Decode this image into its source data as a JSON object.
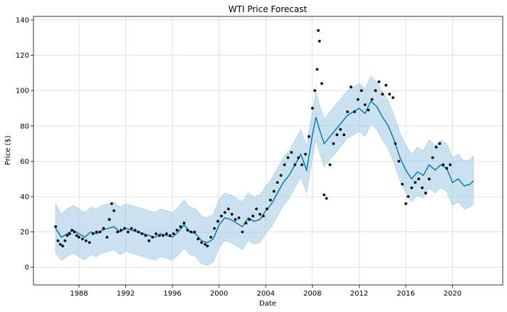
{
  "chart_data": {
    "type": "line",
    "title": "WTI Price Forecast",
    "xlabel": "Date",
    "ylabel": "Price ($)",
    "xlim": [
      1984.1,
      2024.3
    ],
    "ylim": [
      -10,
      142
    ],
    "x_ticks": [
      1988,
      1992,
      1996,
      2000,
      2004,
      2008,
      2012,
      2016,
      2020
    ],
    "y_ticks": [
      0,
      20,
      40,
      60,
      80,
      100,
      120,
      140
    ],
    "grid": true,
    "colors": {
      "forecast": "#0072B2",
      "band": "#9ECAE1",
      "observed": "#000000"
    },
    "forecast": {
      "x": [
        1986.0,
        1986.5,
        1987.0,
        1987.5,
        1988.0,
        1988.5,
        1989.0,
        1989.5,
        1990.0,
        1990.5,
        1991.0,
        1991.5,
        1992.0,
        1992.5,
        1993.0,
        1993.5,
        1994.0,
        1994.5,
        1995.0,
        1995.5,
        1996.0,
        1996.5,
        1997.0,
        1997.5,
        1998.0,
        1998.5,
        1999.0,
        1999.5,
        2000.0,
        2000.5,
        2001.0,
        2001.5,
        2002.0,
        2002.5,
        2003.0,
        2003.5,
        2004.0,
        2004.5,
        2005.0,
        2005.5,
        2006.0,
        2006.5,
        2007.0,
        2007.5,
        2008.0,
        2008.3,
        2008.6,
        2009.0,
        2009.5,
        2010.0,
        2010.5,
        2011.0,
        2011.5,
        2012.0,
        2012.5,
        2013.0,
        2013.5,
        2014.0,
        2014.5,
        2015.0,
        2015.5,
        2016.0,
        2016.5,
        2017.0,
        2017.5,
        2018.0,
        2018.5,
        2019.0,
        2019.5,
        2020.0,
        2020.5,
        2021.0,
        2021.5,
        2021.8
      ],
      "y": [
        22,
        17,
        19,
        21,
        19,
        17,
        20,
        19,
        21,
        22,
        23,
        20,
        22,
        21,
        20,
        19,
        18,
        17,
        19,
        18,
        17,
        20,
        24,
        20,
        19,
        15,
        14,
        16,
        24,
        28,
        27,
        25,
        23,
        28,
        26,
        27,
        32,
        36,
        42,
        48,
        52,
        58,
        64,
        55,
        75,
        85,
        78,
        70,
        74,
        78,
        82,
        86,
        88,
        90,
        87,
        94,
        91,
        85,
        80,
        72,
        62,
        55,
        50,
        54,
        52,
        58,
        55,
        58,
        56,
        48,
        50,
        46,
        47,
        49
      ],
      "lower": [
        8,
        4,
        6,
        8,
        6,
        4,
        7,
        6,
        8,
        9,
        10,
        7,
        9,
        8,
        7,
        6,
        5,
        4,
        6,
        5,
        4,
        7,
        11,
        7,
        6,
        2,
        1,
        3,
        11,
        15,
        14,
        12,
        10,
        15,
        13,
        14,
        19,
        23,
        29,
        35,
        39,
        45,
        51,
        42,
        62,
        72,
        65,
        57,
        61,
        65,
        69,
        73,
        75,
        77,
        74,
        81,
        78,
        72,
        67,
        59,
        49,
        42,
        37,
        41,
        39,
        45,
        42,
        45,
        43,
        35,
        37,
        33,
        34,
        36
      ],
      "upper": [
        36,
        30,
        33,
        35,
        33,
        31,
        34,
        33,
        35,
        36,
        37,
        34,
        36,
        35,
        34,
        33,
        32,
        31,
        33,
        32,
        31,
        34,
        38,
        34,
        33,
        29,
        28,
        30,
        38,
        42,
        41,
        39,
        37,
        42,
        40,
        41,
        46,
        50,
        56,
        62,
        66,
        72,
        78,
        69,
        89,
        99,
        92,
        84,
        88,
        92,
        96,
        100,
        102,
        104,
        101,
        108,
        105,
        99,
        94,
        86,
        76,
        69,
        64,
        68,
        66,
        72,
        69,
        72,
        70,
        62,
        64,
        60,
        61,
        63
      ]
    },
    "observed": {
      "x": [
        1986.0,
        1986.2,
        1986.4,
        1986.6,
        1986.8,
        1987.0,
        1987.2,
        1987.4,
        1987.6,
        1987.8,
        1988.0,
        1988.3,
        1988.6,
        1988.9,
        1989.2,
        1989.5,
        1989.8,
        1990.1,
        1990.4,
        1990.6,
        1990.8,
        1991.0,
        1991.3,
        1991.6,
        1991.9,
        1992.2,
        1992.5,
        1992.8,
        1993.1,
        1993.4,
        1993.7,
        1994.0,
        1994.3,
        1994.6,
        1994.9,
        1995.2,
        1995.5,
        1995.8,
        1996.1,
        1996.4,
        1996.7,
        1997.0,
        1997.3,
        1997.6,
        1997.9,
        1998.2,
        1998.5,
        1998.8,
        1999.0,
        1999.3,
        1999.6,
        1999.9,
        2000.2,
        2000.5,
        2000.8,
        2001.1,
        2001.4,
        2001.7,
        2002.0,
        2002.3,
        2002.6,
        2002.9,
        2003.2,
        2003.5,
        2003.8,
        2004.1,
        2004.4,
        2004.7,
        2005.0,
        2005.3,
        2005.6,
        2005.9,
        2006.2,
        2006.5,
        2006.8,
        2007.1,
        2007.4,
        2007.7,
        2008.0,
        2008.2,
        2008.4,
        2008.5,
        2008.6,
        2008.8,
        2009.0,
        2009.2,
        2009.5,
        2009.8,
        2010.1,
        2010.4,
        2010.7,
        2011.0,
        2011.3,
        2011.6,
        2011.9,
        2012.2,
        2012.5,
        2012.8,
        2013.1,
        2013.4,
        2013.7,
        2014.0,
        2014.3,
        2014.6,
        2014.9,
        2015.1,
        2015.4,
        2015.7,
        2016.0,
        2016.2,
        2016.5,
        2016.8,
        2017.1,
        2017.4,
        2017.7,
        2018.0,
        2018.3,
        2018.6,
        2018.9,
        2019.2,
        2019.5,
        2019.8
      ],
      "y": [
        23,
        15,
        13,
        12,
        15,
        18,
        19,
        21,
        20,
        18,
        17,
        16,
        15,
        14,
        19,
        20,
        20,
        22,
        17,
        27,
        36,
        32,
        20,
        21,
        22,
        20,
        22,
        21,
        20,
        19,
        18,
        15,
        17,
        19,
        18,
        18,
        19,
        18,
        19,
        21,
        23,
        25,
        21,
        20,
        20,
        16,
        14,
        13,
        12,
        17,
        22,
        26,
        29,
        31,
        33,
        30,
        27,
        28,
        20,
        25,
        27,
        29,
        33,
        30,
        29,
        33,
        38,
        43,
        48,
        52,
        58,
        62,
        65,
        58,
        62,
        58,
        64,
        74,
        90,
        100,
        112,
        134,
        128,
        104,
        41,
        39,
        58,
        70,
        75,
        78,
        75,
        88,
        102,
        88,
        95,
        100,
        92,
        89,
        95,
        100,
        105,
        98,
        103,
        98,
        96,
        70,
        60,
        47,
        36,
        40,
        45,
        48,
        50,
        45,
        42,
        50,
        62,
        68,
        70,
        58,
        56,
        58
      ]
    }
  }
}
